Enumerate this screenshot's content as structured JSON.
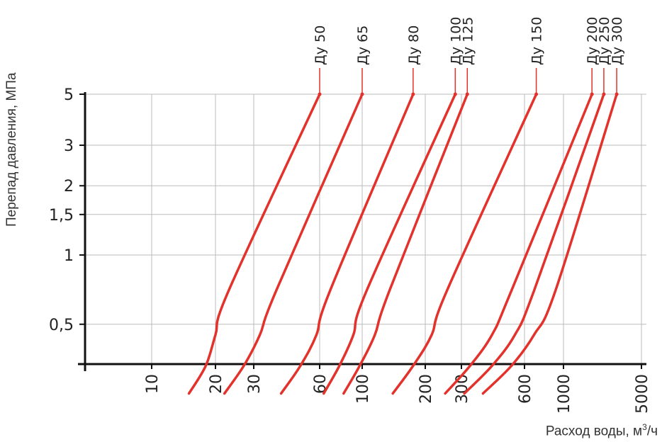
{
  "chart_data": {
    "type": "line",
    "ylabel": "Перепад давления, МПа",
    "xlabel": "Расход воды, м",
    "xlabel_sup": "3",
    "xlabel_suffix": "/ч",
    "x_ticks": [
      "10",
      "20",
      "30",
      "60",
      "100",
      "200",
      "300",
      "600",
      "1000",
      "5000"
    ],
    "y_ticks": [
      "5",
      "3",
      "2",
      "1,5",
      "1",
      "0,5"
    ],
    "grid": true,
    "colors": {
      "series": "#e3322b",
      "grid": "#bbbbbb",
      "axis": "#111111"
    },
    "series": [
      {
        "name": "Ду 50",
        "x": [
          15,
          18,
          20,
          23,
          60
        ],
        "y": [
          0.25,
          0.33,
          0.45,
          0.7,
          5
        ]
      },
      {
        "name": "Ду 65",
        "x": [
          22,
          27,
          32,
          38,
          100
        ],
        "y": [
          0.25,
          0.33,
          0.45,
          0.7,
          5
        ]
      },
      {
        "name": "Ду 80",
        "x": [
          40,
          49,
          58,
          68,
          175
        ],
        "y": [
          0.25,
          0.33,
          0.45,
          0.7,
          5
        ]
      },
      {
        "name": "Ду 100",
        "x": [
          63,
          76,
          90,
          105,
          280
        ],
        "y": [
          0.25,
          0.33,
          0.45,
          0.7,
          5
        ]
      },
      {
        "name": "Ду 125",
        "x": [
          80,
          97,
          115,
          135,
          320
        ],
        "y": [
          0.25,
          0.33,
          0.45,
          0.7,
          5
        ]
      },
      {
        "name": "Ду 150",
        "x": [
          140,
          175,
          215,
          255,
          700
        ],
        "y": [
          0.25,
          0.33,
          0.45,
          0.7,
          5
        ]
      },
      {
        "name": "Ду 200",
        "x": [
          250,
          330,
          420,
          520,
          1800
        ],
        "y": [
          0.25,
          0.33,
          0.45,
          0.7,
          5
        ]
      },
      {
        "name": "Ду 250",
        "x": [
          310,
          420,
          540,
          680,
          2300
        ],
        "y": [
          0.25,
          0.33,
          0.45,
          0.7,
          5
        ]
      },
      {
        "name": "Ду 300",
        "x": [
          380,
          520,
          680,
          900,
          3000
        ],
        "y": [
          0.25,
          0.33,
          0.45,
          0.7,
          5
        ]
      }
    ]
  }
}
